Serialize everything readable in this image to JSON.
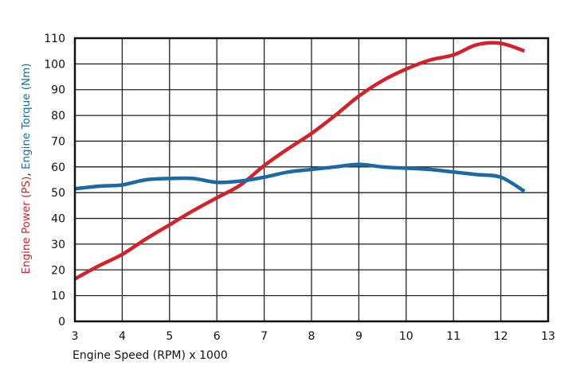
{
  "chart_data": {
    "type": "line",
    "title": "",
    "xlabel": "Engine Speed (RPM) x 1000",
    "ylabel_parts": [
      {
        "text": "Engine Power (PS)",
        "color": "#d2232a"
      },
      {
        "text": ", ",
        "color": "#111111"
      },
      {
        "text": "Engine Torque (Nm)",
        "color": "#1b6aa5"
      }
    ],
    "xlim": [
      3,
      13
    ],
    "ylim": [
      0,
      110
    ],
    "x_ticks": [
      "3",
      "4",
      "5",
      "6",
      "7",
      "8",
      "9",
      "10",
      "11",
      "12",
      "13"
    ],
    "y_ticks": [
      "0",
      "10",
      "20",
      "30",
      "40",
      "50",
      "60",
      "70",
      "80",
      "90",
      "100",
      "110"
    ],
    "grid": true,
    "series": [
      {
        "name": "Engine Power (PS)",
        "color": "#d2232a",
        "x": [
          3.0,
          3.5,
          4.0,
          4.5,
          5.0,
          5.5,
          6.0,
          6.5,
          7.0,
          7.5,
          8.0,
          8.5,
          9.0,
          9.5,
          10.0,
          10.5,
          11.0,
          11.5,
          12.0,
          12.5
        ],
        "values": [
          16.5,
          21.5,
          26,
          32,
          37.5,
          43,
          48,
          53,
          60.5,
          67,
          73,
          80,
          87.5,
          93.5,
          98,
          101.5,
          103.5,
          107.5,
          108,
          105
        ]
      },
      {
        "name": "Engine Torque (Nm)",
        "color": "#1b6aa5",
        "x": [
          3.0,
          3.5,
          4.0,
          4.5,
          5.0,
          5.5,
          6.0,
          6.5,
          7.0,
          7.5,
          8.0,
          8.5,
          9.0,
          9.5,
          10.0,
          10.5,
          11.0,
          11.5,
          12.0,
          12.5
        ],
        "values": [
          51.5,
          52.5,
          53,
          55,
          55.5,
          55.5,
          54,
          54.5,
          56,
          58,
          59,
          60,
          61,
          60,
          59.5,
          59,
          58,
          57,
          56,
          50.5
        ]
      }
    ]
  }
}
